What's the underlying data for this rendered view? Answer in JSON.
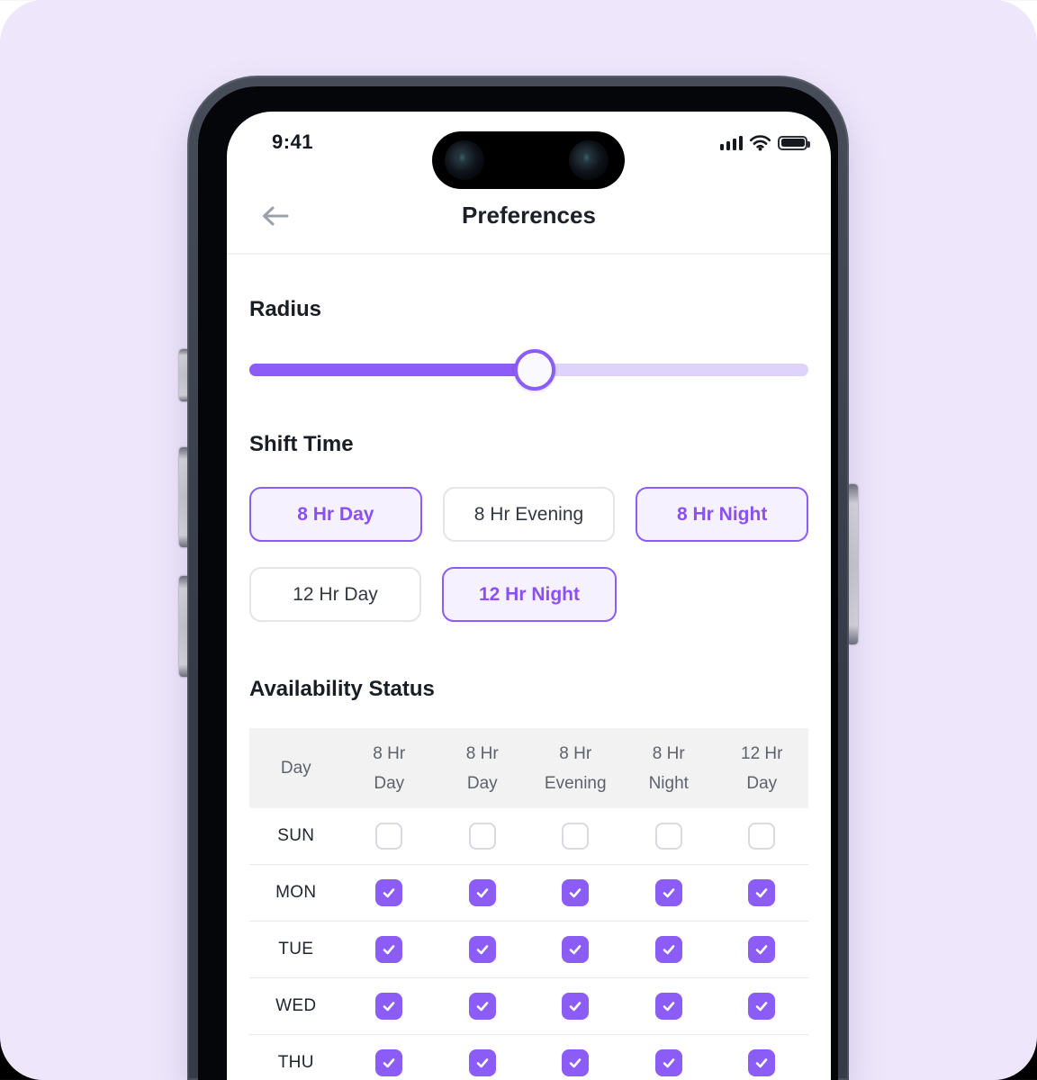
{
  "colors": {
    "accent": "#8B5CF6",
    "accent_light": "#DDD3FB",
    "chip_selected_bg": "#F6F1FE",
    "page_bg": "#EEE7FB"
  },
  "status_bar": {
    "time": "9:41"
  },
  "header": {
    "title": "Preferences"
  },
  "radius": {
    "label": "Radius",
    "value_percent": 51
  },
  "shift_time": {
    "label": "Shift Time",
    "options": [
      {
        "label": "8 Hr Day",
        "selected": true
      },
      {
        "label": "8 Hr Evening",
        "selected": false
      },
      {
        "label": "8 Hr Night",
        "selected": true
      },
      {
        "label": "12 Hr Day",
        "selected": false
      },
      {
        "label": "12 Hr Night",
        "selected": true
      }
    ]
  },
  "availability": {
    "label": "Availability Status",
    "columns": [
      "Day",
      "8 Hr\nDay",
      "8 Hr\nDay",
      "8 Hr\nEvening",
      "8 Hr\nNight",
      "12 Hr\nDay"
    ],
    "rows": [
      {
        "day": "SUN",
        "checked": [
          false,
          false,
          false,
          false,
          false
        ]
      },
      {
        "day": "MON",
        "checked": [
          true,
          true,
          true,
          true,
          true
        ]
      },
      {
        "day": "TUE",
        "checked": [
          true,
          true,
          true,
          true,
          true
        ]
      },
      {
        "day": "WED",
        "checked": [
          true,
          true,
          true,
          true,
          true
        ]
      },
      {
        "day": "THU",
        "checked": [
          true,
          true,
          true,
          true,
          true
        ]
      }
    ]
  }
}
